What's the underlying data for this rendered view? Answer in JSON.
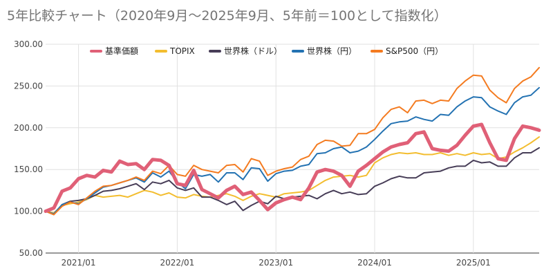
{
  "chart_data": {
    "type": "line",
    "title": "5年比較チャート（2020年9月～2025年9月、5年前＝100として指数化）",
    "xlabel": "",
    "ylabel": "",
    "ylim": [
      50,
      300
    ],
    "yticks": [
      "300.00",
      "250.00",
      "200.00",
      "150.00",
      "100.00",
      "50.00"
    ],
    "xticks": [
      "2021/01",
      "2022/01",
      "2023/01",
      "2024/01",
      "2025/01"
    ],
    "grid": true,
    "legend_position": "top",
    "x": [
      "2020/09",
      "2020/10",
      "2020/11",
      "2020/12",
      "2021/01",
      "2021/02",
      "2021/03",
      "2021/04",
      "2021/05",
      "2021/06",
      "2021/07",
      "2021/08",
      "2021/09",
      "2021/10",
      "2021/11",
      "2021/12",
      "2022/01",
      "2022/02",
      "2022/03",
      "2022/04",
      "2022/05",
      "2022/06",
      "2022/07",
      "2022/08",
      "2022/09",
      "2022/10",
      "2022/11",
      "2022/12",
      "2023/01",
      "2023/02",
      "2023/03",
      "2023/04",
      "2023/05",
      "2023/06",
      "2023/07",
      "2023/08",
      "2023/09",
      "2023/10",
      "2023/11",
      "2023/12",
      "2024/01",
      "2024/02",
      "2024/03",
      "2024/04",
      "2024/05",
      "2024/06",
      "2024/07",
      "2024/08",
      "2024/09",
      "2024/10",
      "2024/11",
      "2024/12",
      "2025/01",
      "2025/02",
      "2025/03",
      "2025/04",
      "2025/05",
      "2025/06",
      "2025/07",
      "2025/08",
      "2025/09"
    ],
    "series": [
      {
        "name": "基準価額",
        "color": "#e06077",
        "width": 5,
        "values": [
          100,
          104,
          124,
          128,
          139,
          143,
          141,
          149,
          147,
          160,
          156,
          157,
          150,
          162,
          161,
          155,
          133,
          131,
          149,
          126,
          121,
          116,
          125,
          130,
          120,
          123,
          113,
          102,
          110,
          114,
          117,
          114,
          128,
          147,
          150,
          148,
          143,
          130,
          148,
          155,
          163,
          171,
          177,
          180,
          182,
          193,
          195,
          175,
          173,
          172,
          179,
          191,
          202,
          204,
          182,
          163,
          161,
          187,
          202,
          200,
          197
        ]
      },
      {
        "name": "TOPIX",
        "color": "#f3bd2f",
        "width": 2,
        "values": [
          100,
          98,
          107,
          109,
          111,
          114,
          119,
          117,
          118,
          119,
          117,
          121,
          125,
          123,
          119,
          122,
          117,
          116,
          120,
          118,
          117,
          119,
          121,
          118,
          113,
          118,
          121,
          119,
          117,
          121,
          122,
          123,
          125,
          131,
          137,
          141,
          142,
          143,
          141,
          143,
          158,
          164,
          168,
          170,
          169,
          170,
          168,
          168,
          170,
          167,
          169,
          167,
          170,
          168,
          169,
          163,
          165,
          171,
          176,
          182,
          189
        ]
      },
      {
        "name": "世界株（ドル）",
        "color": "#473d57",
        "width": 2,
        "values": [
          100,
          96,
          108,
          112,
          113,
          115,
          119,
          124,
          125,
          127,
          130,
          133,
          126,
          135,
          133,
          137,
          128,
          125,
          128,
          117,
          117,
          113,
          108,
          112,
          101,
          107,
          112,
          109,
          118,
          115,
          117,
          118,
          119,
          115,
          121,
          125,
          121,
          123,
          120,
          121,
          130,
          134,
          139,
          142,
          140,
          140,
          146,
          147,
          148,
          152,
          154,
          154,
          161,
          158,
          159,
          154,
          154,
          164,
          170,
          170,
          176
        ]
      },
      {
        "name": "世界株（円）",
        "color": "#2372b2",
        "width": 2,
        "values": [
          100,
          97,
          108,
          111,
          109,
          115,
          122,
          129,
          131,
          134,
          137,
          140,
          135,
          146,
          141,
          148,
          135,
          127,
          144,
          142,
          144,
          135,
          146,
          146,
          138,
          152,
          151,
          136,
          145,
          148,
          149,
          154,
          156,
          169,
          170,
          175,
          177,
          170,
          172,
          177,
          186,
          196,
          205,
          207,
          208,
          213,
          210,
          208,
          216,
          215,
          225,
          232,
          237,
          236,
          225,
          220,
          216,
          230,
          237,
          239,
          248
        ]
      },
      {
        "name": "S&P500（円）",
        "color": "#f47b20",
        "width": 2,
        "values": [
          100,
          96,
          106,
          111,
          108,
          116,
          124,
          130,
          131,
          134,
          137,
          141,
          137,
          148,
          145,
          155,
          144,
          142,
          155,
          150,
          148,
          146,
          155,
          156,
          147,
          163,
          160,
          143,
          148,
          151,
          153,
          162,
          166,
          180,
          185,
          184,
          178,
          179,
          193,
          193,
          198,
          212,
          222,
          225,
          218,
          232,
          233,
          229,
          233,
          232,
          247,
          256,
          263,
          262,
          245,
          236,
          230,
          247,
          256,
          261,
          272
        ]
      }
    ]
  }
}
